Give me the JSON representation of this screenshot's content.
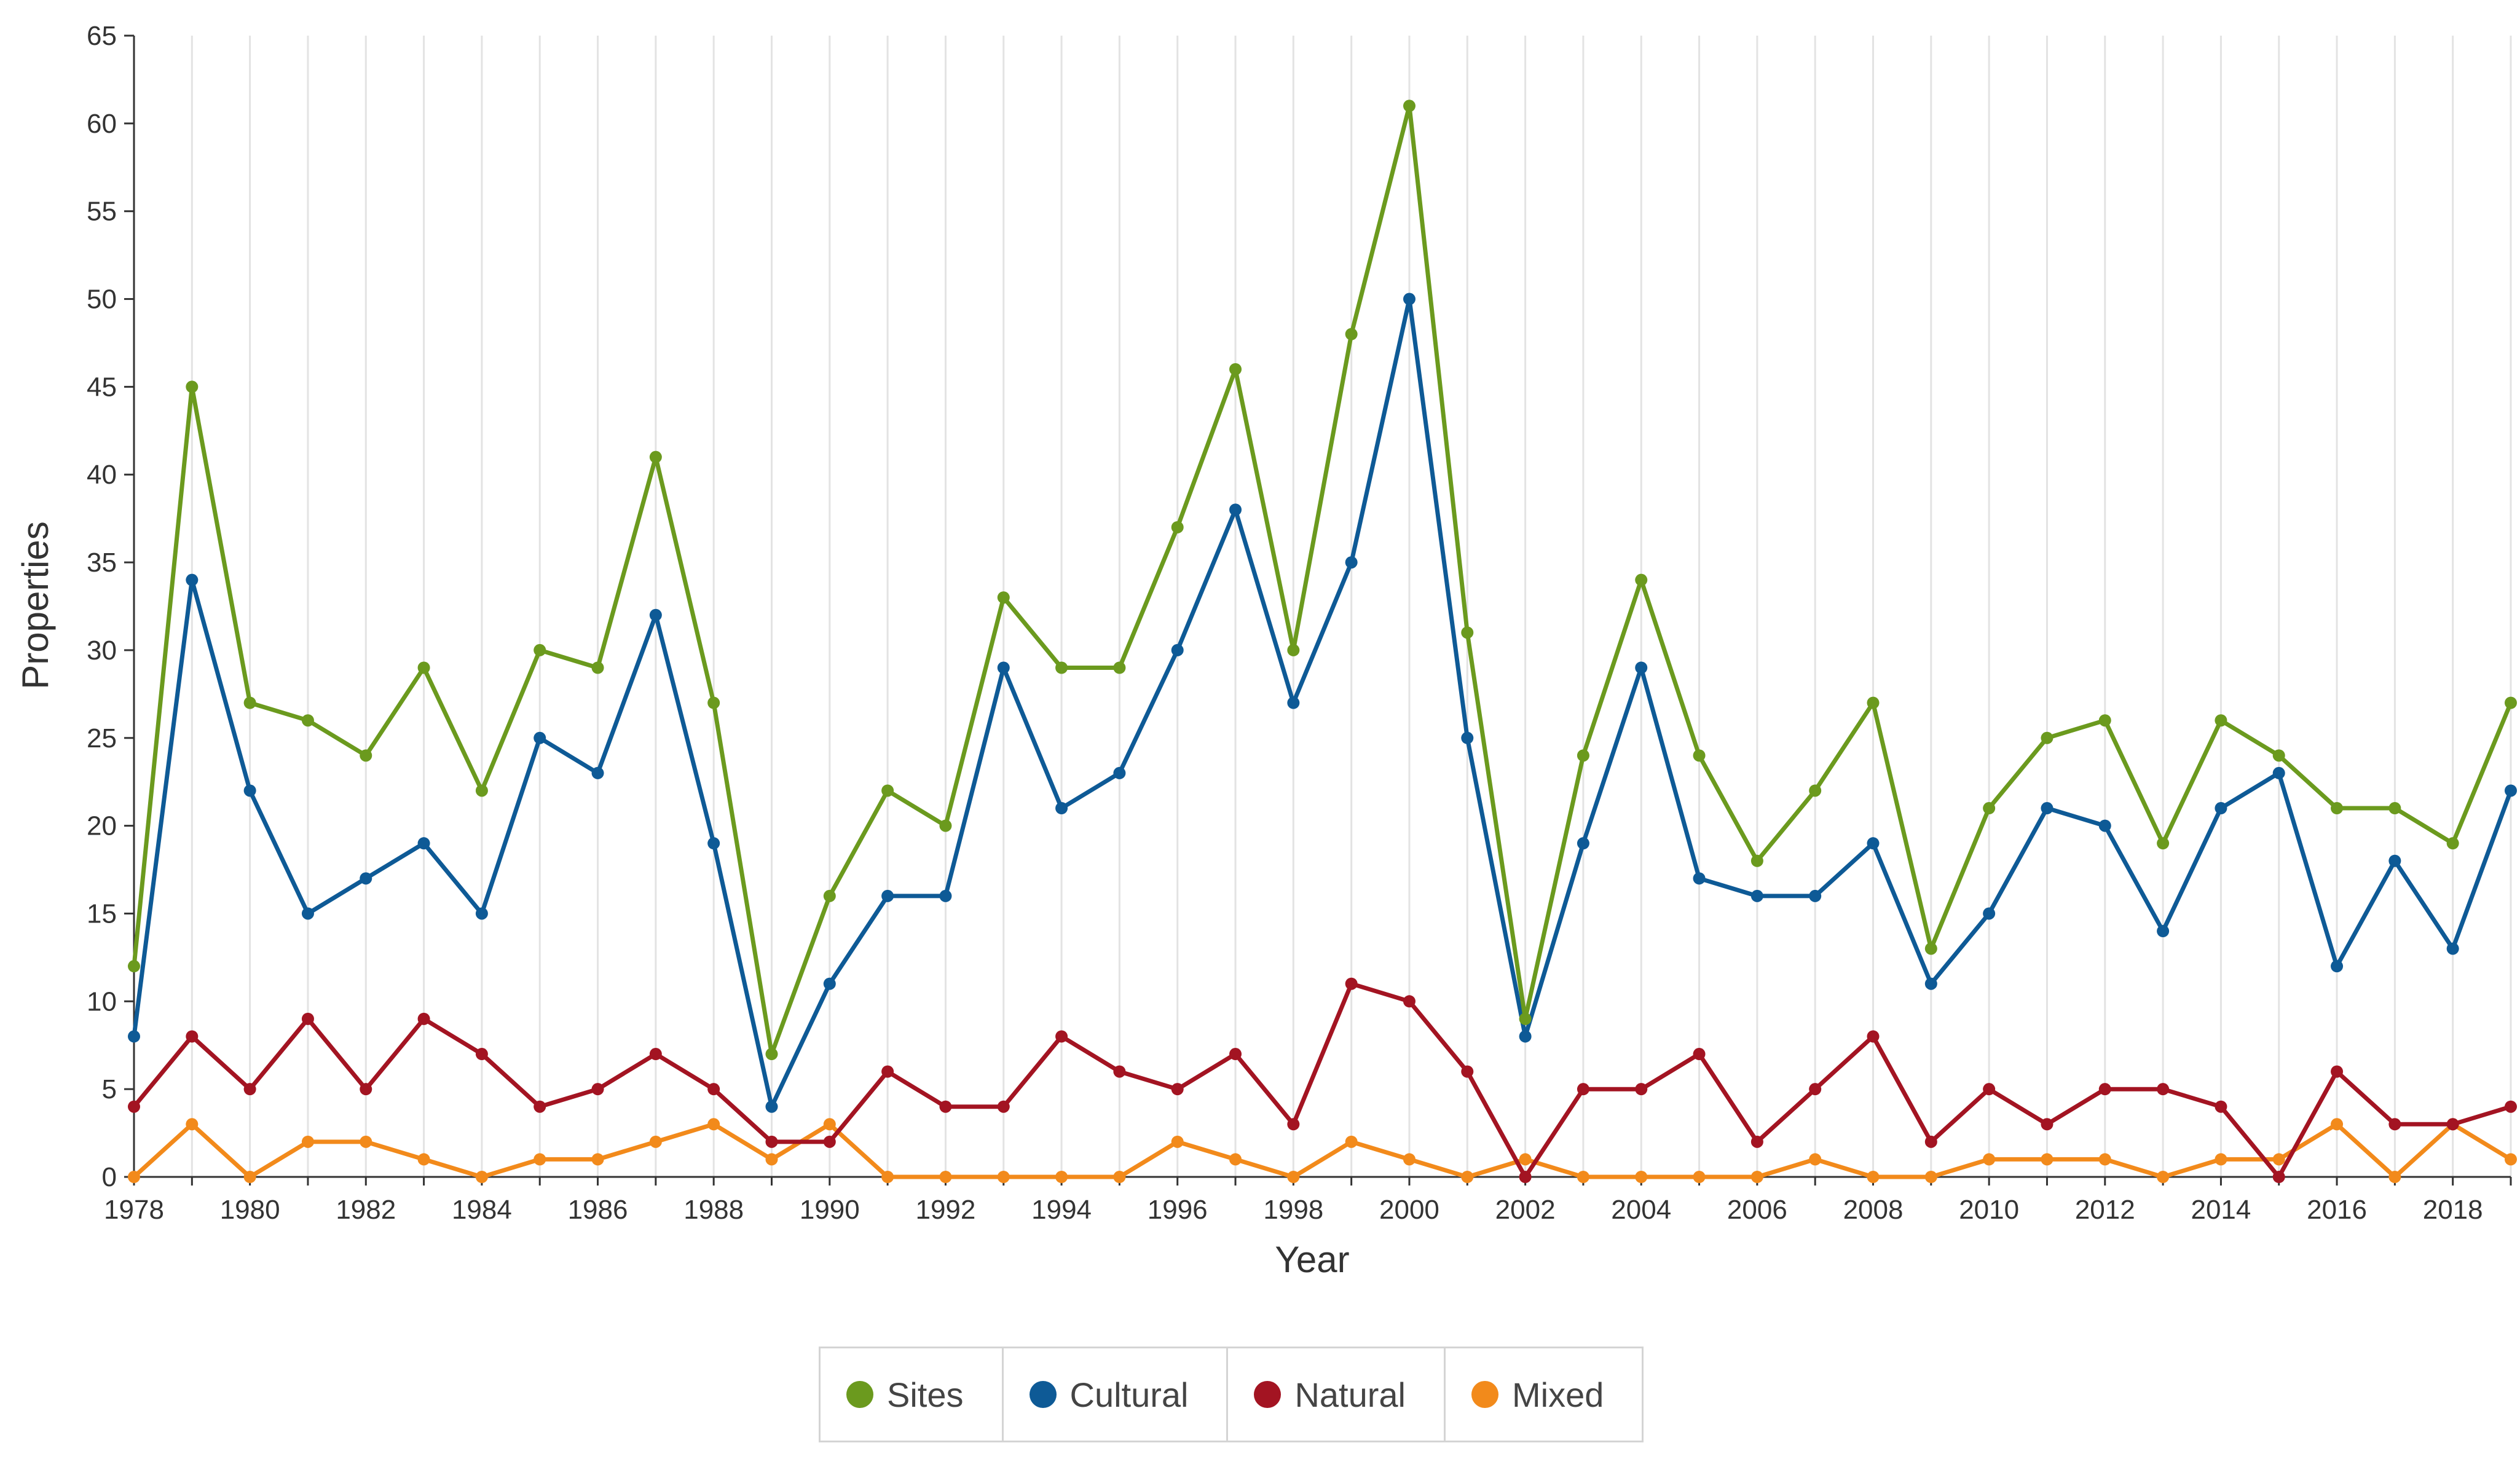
{
  "chart_data": {
    "type": "line",
    "title": "",
    "xlabel": "Year",
    "ylabel": "Properties",
    "ylim": [
      0,
      65
    ],
    "xlim": [
      1978,
      2019
    ],
    "y_ticks": [
      "0",
      "5",
      "10",
      "15",
      "20",
      "25",
      "30",
      "35",
      "40",
      "45",
      "50",
      "55",
      "60",
      "65"
    ],
    "x_ticks": [
      "1978",
      "1980",
      "1982",
      "1984",
      "1986",
      "1988",
      "1990",
      "1992",
      "1994",
      "1996",
      "1998",
      "2000",
      "2002",
      "2004",
      "2006",
      "2008",
      "2010",
      "2012",
      "2014",
      "2016",
      "2018"
    ],
    "grid": "vertical",
    "legend_position": "bottom-center",
    "x": [
      1978,
      1979,
      1980,
      1981,
      1982,
      1983,
      1984,
      1985,
      1986,
      1987,
      1988,
      1989,
      1990,
      1991,
      1992,
      1993,
      1994,
      1995,
      1996,
      1997,
      1998,
      1999,
      2000,
      2001,
      2002,
      2003,
      2004,
      2005,
      2006,
      2007,
      2008,
      2009,
      2010,
      2011,
      2012,
      2013,
      2014,
      2015,
      2016,
      2017,
      2018,
      2019
    ],
    "series": [
      {
        "name": "Sites",
        "color": "#6b9a1e",
        "values": [
          12,
          45,
          27,
          26,
          24,
          29,
          22,
          30,
          29,
          41,
          27,
          7,
          16,
          22,
          20,
          33,
          29,
          29,
          37,
          46,
          30,
          48,
          61,
          31,
          9,
          24,
          34,
          24,
          18,
          22,
          27,
          13,
          21,
          25,
          26,
          19,
          26,
          24,
          21,
          21,
          19,
          27
        ]
      },
      {
        "name": "Cultural",
        "color": "#0e5a96",
        "values": [
          8,
          34,
          22,
          15,
          17,
          19,
          15,
          25,
          23,
          32,
          19,
          4,
          11,
          16,
          16,
          29,
          21,
          23,
          30,
          38,
          27,
          35,
          50,
          25,
          8,
          19,
          29,
          17,
          16,
          16,
          19,
          11,
          15,
          21,
          20,
          14,
          21,
          23,
          12,
          18,
          13,
          22
        ]
      },
      {
        "name": "Natural",
        "color": "#a31422",
        "values": [
          4,
          8,
          5,
          9,
          5,
          9,
          7,
          4,
          5,
          7,
          5,
          2,
          2,
          6,
          4,
          4,
          8,
          6,
          5,
          7,
          3,
          11,
          10,
          6,
          0,
          5,
          5,
          7,
          2,
          5,
          8,
          2,
          5,
          3,
          5,
          5,
          4,
          0,
          6,
          3,
          3,
          4
        ]
      },
      {
        "name": "Mixed",
        "color": "#f28a1b",
        "values": [
          0,
          3,
          0,
          2,
          2,
          1,
          0,
          1,
          1,
          2,
          3,
          1,
          3,
          0,
          0,
          0,
          0,
          0,
          2,
          1,
          0,
          2,
          1,
          0,
          1,
          0,
          0,
          0,
          0,
          1,
          0,
          0,
          1,
          1,
          1,
          0,
          1,
          1,
          3,
          0,
          3,
          1
        ]
      }
    ]
  },
  "legend": {
    "items": [
      {
        "label": "Sites",
        "color": "#6b9a1e"
      },
      {
        "label": "Cultural",
        "color": "#0e5a96"
      },
      {
        "label": "Natural",
        "color": "#a31422"
      },
      {
        "label": "Mixed",
        "color": "#f28a1b"
      }
    ]
  }
}
